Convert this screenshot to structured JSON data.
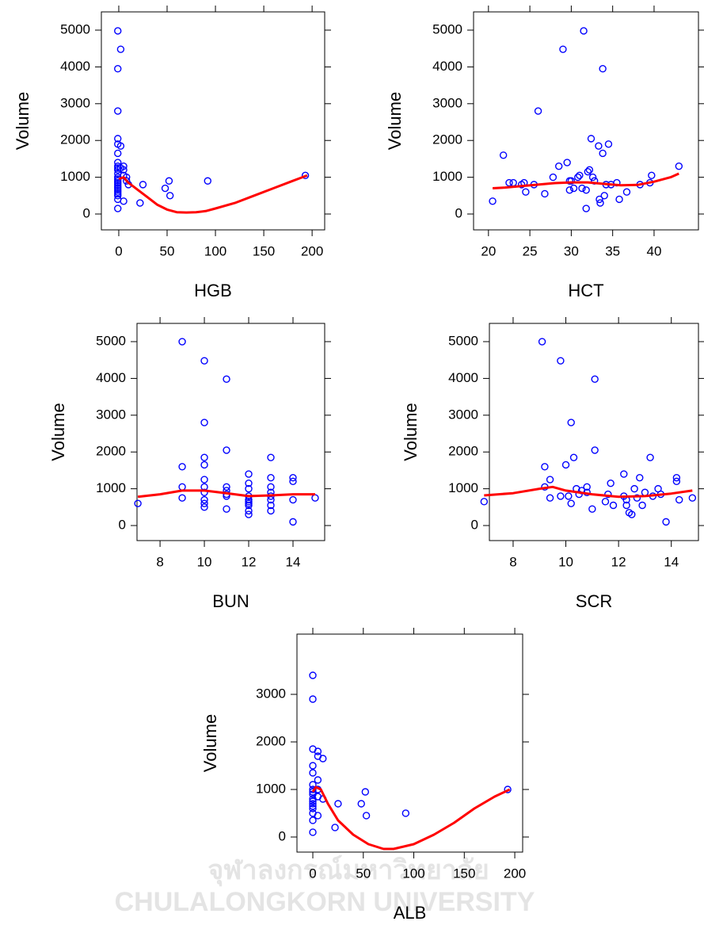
{
  "chart_data": [
    {
      "type": "scatter",
      "xlabel": "HGB",
      "ylabel": "Volume",
      "xlim": [
        -18,
        213
      ],
      "ylim": [
        -431,
        5496
      ],
      "xticks": [
        0,
        50,
        100,
        150,
        200
      ],
      "yticks": [
        0,
        1000,
        2000,
        3000,
        4000,
        5000
      ],
      "series": [
        {
          "type": "scatter",
          "color": "#0000ff",
          "x": [
            -1,
            -1,
            -1,
            -1,
            -1,
            -1,
            -1,
            -1,
            -1,
            -1,
            -1,
            -1,
            -1,
            -1,
            -1,
            -1,
            -1,
            -1,
            -1,
            -1,
            -1,
            -1,
            -1,
            -1,
            2,
            2,
            2,
            5,
            5,
            5,
            5,
            8,
            8,
            10,
            22,
            25,
            48,
            52,
            53,
            92,
            193
          ],
          "values": [
            4980,
            3950,
            2800,
            2050,
            1900,
            1650,
            1400,
            1300,
            1250,
            1200,
            1100,
            1000,
            950,
            900,
            850,
            800,
            750,
            700,
            650,
            600,
            550,
            500,
            400,
            150,
            4480,
            1850,
            1250,
            1300,
            1200,
            1050,
            350,
            1000,
            900,
            800,
            300,
            800,
            700,
            900,
            500,
            900,
            1050
          ]
        },
        {
          "type": "line",
          "color": "#ff0000",
          "x": [
            0,
            5,
            10,
            20,
            30,
            40,
            50,
            60,
            70,
            80,
            90,
            100,
            120,
            140,
            160,
            180,
            195
          ],
          "values": [
            950,
            1000,
            850,
            650,
            450,
            250,
            120,
            50,
            40,
            50,
            80,
            150,
            300,
            500,
            700,
            900,
            1050
          ]
        }
      ]
    },
    {
      "type": "scatter",
      "xlabel": "HCT",
      "ylabel": "Volume",
      "xlim": [
        18.2,
        45.36
      ],
      "ylim": [
        -431,
        5496
      ],
      "xticks": [
        20,
        25,
        30,
        35,
        40
      ],
      "yticks": [
        0,
        1000,
        2000,
        3000,
        4000,
        5000
      ],
      "series": [
        {
          "type": "scatter",
          "color": "#0000ff",
          "x": [
            20.5,
            21.8,
            22.5,
            23,
            24,
            24.3,
            24.5,
            25.5,
            26,
            26.8,
            27.8,
            28.5,
            29,
            29.5,
            29.8,
            29.8,
            30,
            30.3,
            30.8,
            31,
            31.3,
            31.5,
            31.8,
            31.8,
            32,
            32.2,
            32.4,
            32.6,
            32.8,
            33.3,
            33.4,
            33.5,
            33.8,
            33.8,
            34,
            34.2,
            34.5,
            34.8,
            35.5,
            35.8,
            36.7,
            38.3,
            39.5,
            39.7,
            43
          ],
          "values": [
            350,
            1600,
            850,
            850,
            800,
            850,
            600,
            800,
            2800,
            550,
            1000,
            1300,
            4480,
            1400,
            900,
            650,
            900,
            700,
            1000,
            1050,
            700,
            4980,
            150,
            650,
            1150,
            1200,
            2050,
            1000,
            900,
            1850,
            400,
            300,
            3950,
            1650,
            500,
            800,
            1900,
            800,
            850,
            400,
            600,
            800,
            850,
            1050,
            1300
          ]
        },
        {
          "type": "line",
          "color": "#ff0000",
          "x": [
            20.5,
            22,
            24,
            26,
            28,
            30,
            32,
            34,
            36,
            38,
            40,
            42,
            43
          ],
          "values": [
            700,
            720,
            760,
            800,
            840,
            860,
            860,
            820,
            780,
            790,
            880,
            1000,
            1100
          ]
        }
      ]
    },
    {
      "type": "scatter",
      "xlabel": "BUN",
      "ylabel": "Volume",
      "xlim": [
        6.96,
        15.43
      ],
      "ylim": [
        -409,
        5496
      ],
      "xticks": [
        8,
        10,
        12,
        14
      ],
      "yticks": [
        0,
        1000,
        2000,
        3000,
        4000,
        5000
      ],
      "series": [
        {
          "type": "scatter",
          "color": "#0000ff",
          "x": [
            7,
            9,
            9,
            9,
            9,
            10,
            10,
            10,
            10,
            10,
            10,
            10,
            10,
            10,
            10,
            11,
            11,
            11,
            11,
            11,
            11,
            11,
            12,
            12,
            12,
            12,
            12,
            12,
            12,
            12,
            12,
            12,
            13,
            13,
            13,
            13,
            13,
            13,
            13,
            13,
            14,
            14,
            14,
            14,
            15
          ],
          "values": [
            600,
            5000,
            1600,
            1050,
            750,
            4480,
            2800,
            1850,
            1650,
            1250,
            1050,
            900,
            700,
            600,
            500,
            3980,
            2050,
            1050,
            950,
            850,
            800,
            450,
            1400,
            1150,
            1000,
            800,
            700,
            650,
            600,
            550,
            400,
            300,
            1850,
            1300,
            1050,
            900,
            800,
            700,
            550,
            400,
            1300,
            1200,
            700,
            100,
            750
          ]
        },
        {
          "type": "line",
          "color": "#ff0000",
          "x": [
            7,
            8,
            9,
            10,
            11,
            12,
            13,
            14,
            15
          ],
          "values": [
            780,
            850,
            950,
            950,
            880,
            800,
            820,
            850,
            850
          ]
        }
      ]
    },
    {
      "type": "scatter",
      "xlabel": "SCR",
      "ylabel": "Volume",
      "xlim": [
        7.1,
        15.03
      ],
      "ylim": [
        -409,
        5496
      ],
      "xticks": [
        8,
        10,
        12,
        14
      ],
      "yticks": [
        0,
        1000,
        2000,
        3000,
        4000,
        5000
      ],
      "series": [
        {
          "type": "scatter",
          "color": "#0000ff",
          "x": [
            6.9,
            9.1,
            9.2,
            9.2,
            9.4,
            9.4,
            9.8,
            9.8,
            10,
            10.1,
            10.2,
            10.3,
            10.2,
            10.4,
            10.5,
            10.6,
            10.8,
            10.8,
            11,
            11.1,
            11.1,
            11.5,
            11.6,
            11.7,
            11.8,
            12.2,
            12.2,
            12.3,
            12.3,
            12.4,
            12.5,
            12.6,
            12.7,
            12.8,
            12.9,
            13,
            13.2,
            13.3,
            13.5,
            13.6,
            13.8,
            14.2,
            14.2,
            14.3,
            14.8
          ],
          "values": [
            650,
            5000,
            1600,
            1050,
            1250,
            750,
            4480,
            800,
            1650,
            800,
            600,
            1850,
            2800,
            1000,
            850,
            950,
            1050,
            900,
            450,
            3980,
            2050,
            650,
            850,
            1150,
            550,
            1400,
            800,
            700,
            550,
            350,
            300,
            1000,
            750,
            1300,
            550,
            900,
            1850,
            800,
            1000,
            850,
            100,
            1300,
            1200,
            700,
            750
          ]
        },
        {
          "type": "line",
          "color": "#ff0000",
          "x": [
            6.9,
            8,
            9,
            9.5,
            10,
            11,
            12,
            13,
            14,
            14.8
          ],
          "values": [
            820,
            880,
            1000,
            1050,
            950,
            850,
            780,
            800,
            870,
            950
          ]
        }
      ]
    },
    {
      "type": "scatter",
      "xlabel": "ALB",
      "ylabel": "Volume",
      "xlim": [
        -15.7,
        207.8
      ],
      "ylim": [
        -317,
        4267
      ],
      "xticks": [
        0,
        50,
        100,
        150,
        200
      ],
      "yticks": [
        0,
        1000,
        2000,
        3000
      ],
      "series": [
        {
          "type": "scatter",
          "color": "#0000ff",
          "x": [
            0,
            0,
            0,
            0,
            0,
            0,
            0,
            0,
            0,
            0,
            0,
            0,
            0,
            0,
            0,
            0,
            0,
            5,
            5,
            5,
            5,
            5,
            5,
            10,
            10,
            22,
            25,
            48,
            52,
            53,
            92,
            193
          ],
          "values": [
            3400,
            2900,
            1850,
            1500,
            1350,
            1100,
            1000,
            950,
            900,
            800,
            750,
            700,
            650,
            600,
            500,
            350,
            100,
            1800,
            1700,
            1200,
            1000,
            850,
            450,
            1650,
            800,
            200,
            700,
            700,
            950,
            450,
            500,
            1000
          ]
        },
        {
          "type": "line",
          "color": "#ff0000",
          "x": [
            0,
            3,
            8,
            15,
            25,
            40,
            55,
            70,
            80,
            100,
            120,
            140,
            160,
            180,
            195
          ],
          "values": [
            950,
            1050,
            1000,
            700,
            350,
            50,
            -150,
            -250,
            -250,
            -150,
            50,
            300,
            600,
            850,
            1000
          ]
        }
      ]
    }
  ],
  "watermark": [
    "จุฬาลงกรณ์มหาวิทยาลัย",
    "CHULALONGKORN UNIVERSITY"
  ]
}
